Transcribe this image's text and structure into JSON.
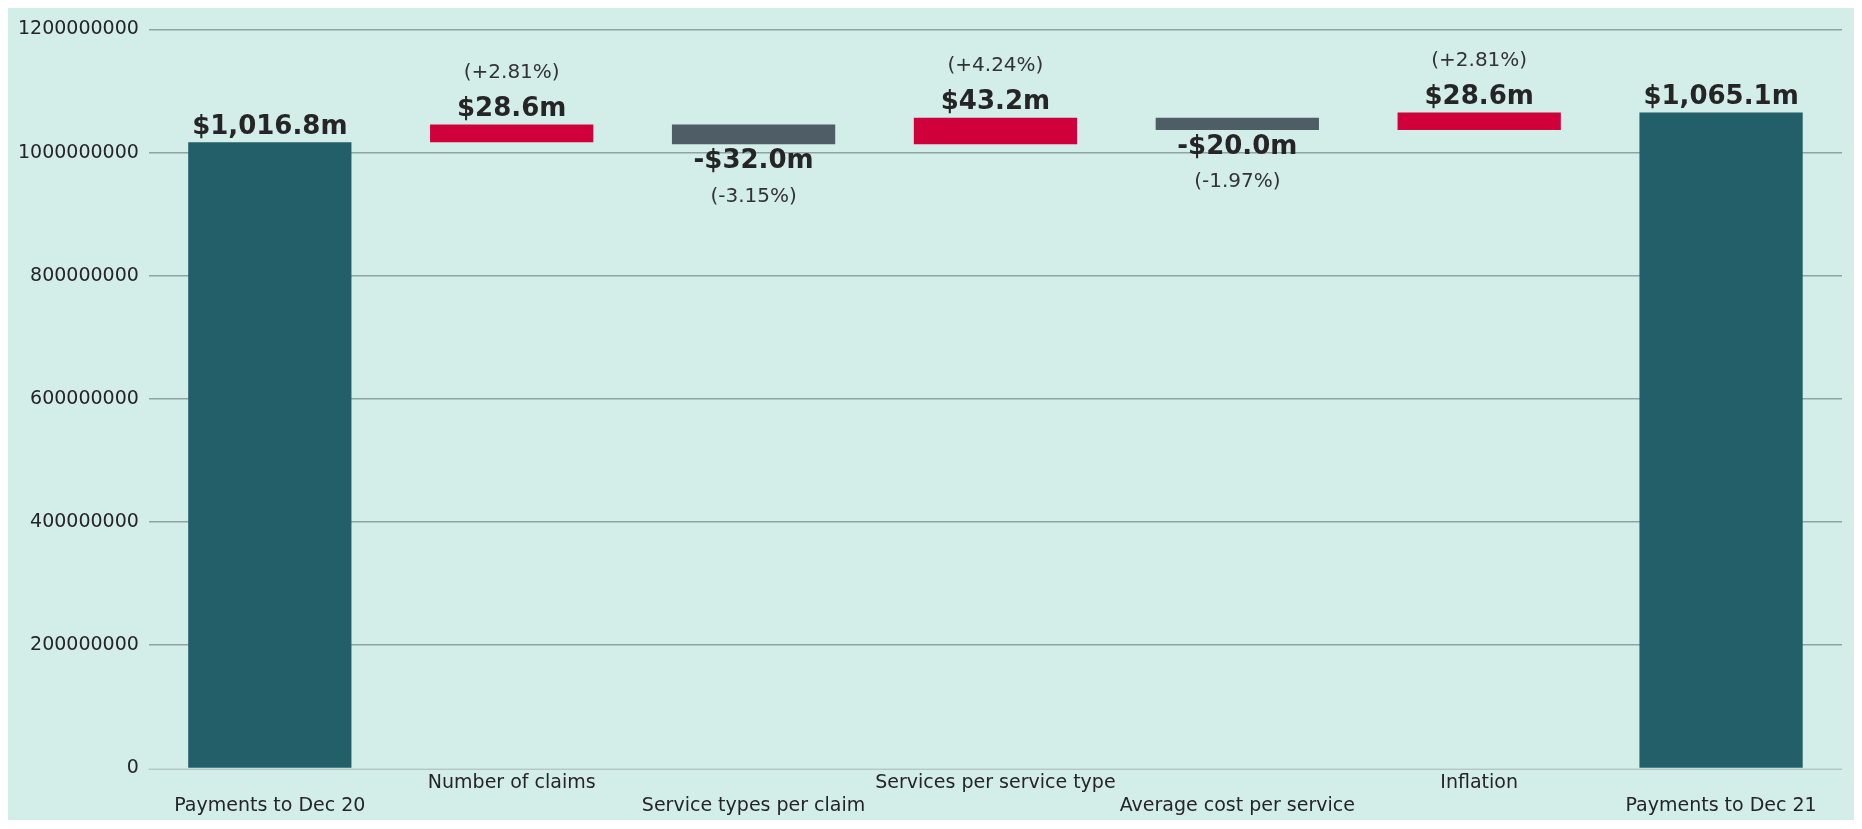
{
  "chart_data": {
    "type": "bar",
    "categories": [
      "Payments to Dec 20",
      "Number of claims",
      "Service types per claim",
      "Services per service type",
      "Average cost per service",
      "Inflation",
      "Payments to Dec 21"
    ],
    "values": [
      1016800000,
      28600000,
      -32000000,
      43200000,
      -20000000,
      28600000,
      1065100000
    ],
    "base": [
      0,
      1016800000,
      1045400000,
      1013400000,
      1056600000,
      1036600000,
      0
    ],
    "colors": [
      "#235f68",
      "#d0003a",
      "#4f5d66",
      "#d0003a",
      "#4f5d66",
      "#d0003a",
      "#235f68"
    ],
    "value_labels": [
      "$1,016.8m",
      "$28.6m",
      "-$32.0m",
      "$43.2m",
      "-$20.0m",
      "$28.6m",
      "$1,065.1m"
    ],
    "annotations": [
      {
        "text": "(+2.81%)",
        "x": "Number of claims",
        "y": 1045400000
      },
      {
        "text": "(-3.15%)",
        "x": "Service types per claim",
        "y": 1013400000
      },
      {
        "text": "(+4.24%)",
        "x": "Services per service type",
        "y": 1056600000
      },
      {
        "text": "(-1.97%)",
        "x": "Average cost per service",
        "y": 1036600000
      },
      {
        "text": "(+2.81%)",
        "x": "Inflation",
        "y": 1065200000
      }
    ],
    "ylim": [
      0,
      1200000000
    ],
    "yticks": [
      0,
      200000000,
      400000000,
      600000000,
      800000000,
      1000000000,
      1200000000
    ],
    "grid": "y",
    "legend": false
  }
}
